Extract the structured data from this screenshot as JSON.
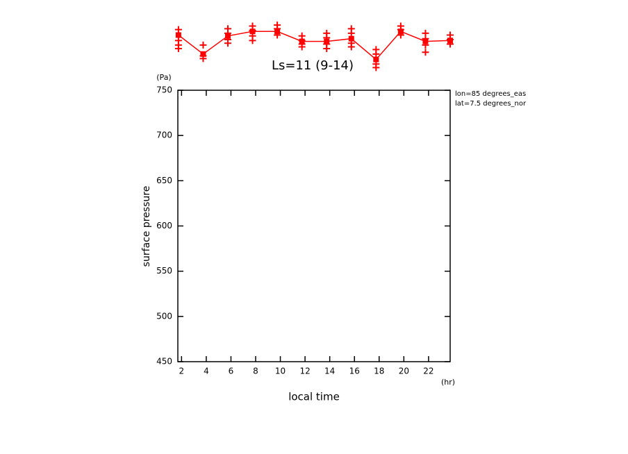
{
  "chart_data": {
    "type": "line",
    "title": "Ls=11 (9-14)",
    "x_label": "local time",
    "x_unit": "(hr)",
    "y_label": "surface pressure",
    "y_unit": "(Pa)",
    "annotations": [
      "lon=85 degrees_eas",
      "lat=7.5 degrees_nor"
    ],
    "xlim": [
      1.7,
      23.75
    ],
    "xticks": [
      2,
      4,
      6,
      8,
      10,
      12,
      14,
      16,
      18,
      20,
      22
    ],
    "ylim": [
      450,
      750
    ],
    "yticks": [
      450,
      500,
      550,
      600,
      650,
      700,
      750
    ],
    "color": "#ff0000",
    "x": [
      1.75,
      3.75,
      5.75,
      7.75,
      9.75,
      11.75,
      13.75,
      15.75,
      17.75,
      19.75,
      21.75,
      23.75
    ],
    "values": [
      811,
      790,
      810,
      815,
      815,
      804,
      804,
      807,
      784,
      815,
      804,
      805
    ],
    "samples": {
      "x": [
        1.75,
        1.75,
        1.75,
        1.75,
        3.75,
        3.75,
        3.75,
        5.75,
        5.75,
        5.75,
        5.75,
        7.75,
        7.75,
        7.75,
        7.75,
        9.75,
        9.75,
        9.75,
        11.75,
        11.75,
        11.75,
        11.75,
        13.75,
        13.75,
        13.75,
        13.75,
        15.75,
        15.75,
        15.75,
        15.75,
        17.75,
        17.75,
        17.75,
        17.75,
        19.75,
        19.75,
        19.75,
        21.75,
        21.75,
        21.75,
        21.75,
        23.75,
        23.75,
        23.75
      ],
      "values": [
        817,
        805,
        800,
        796,
        800,
        788,
        785,
        818,
        813,
        806,
        802,
        821,
        816,
        810,
        805,
        822,
        818,
        811,
        810,
        805,
        801,
        798,
        813,
        808,
        801,
        796,
        818,
        813,
        802,
        798,
        795,
        790,
        779,
        775,
        821,
        817,
        811,
        813,
        807,
        800,
        792,
        811,
        806,
        801
      ]
    }
  }
}
